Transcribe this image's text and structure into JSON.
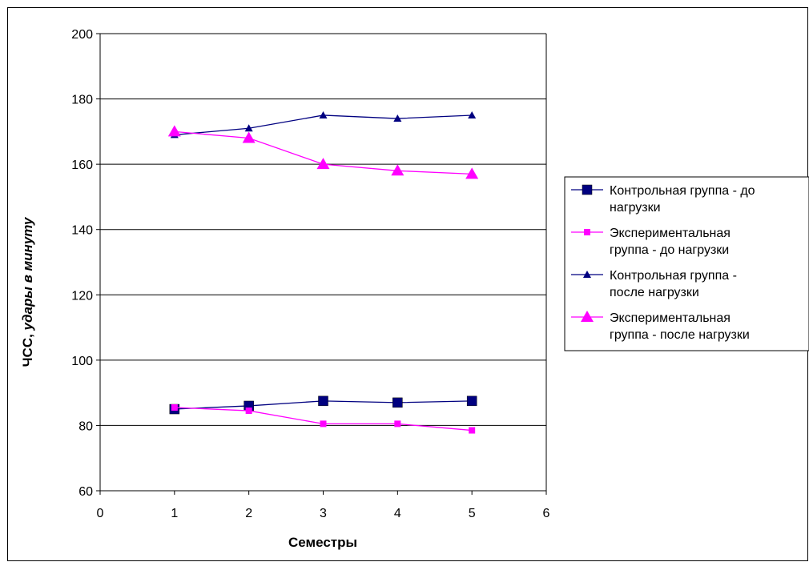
{
  "chart_data": {
    "type": "line",
    "xlabel": "Семестры",
    "ylabel_plain": "ЧСС,",
    "ylabel_italic": " удары в минуту",
    "xlim": [
      0,
      6
    ],
    "ylim": [
      60,
      200
    ],
    "xticks": [
      "0",
      "1",
      "2",
      "3",
      "4",
      "5",
      "6"
    ],
    "yticks": [
      "60",
      "80",
      "100",
      "120",
      "140",
      "160",
      "180",
      "200"
    ],
    "grid": "horizontal",
    "legend_position": "right",
    "x": [
      1,
      2,
      3,
      4,
      5
    ],
    "series": [
      {
        "name_lines": [
          "Контрольная группа - до",
          "нагрузки"
        ],
        "color": "#000080",
        "marker": "square-large",
        "values": [
          85,
          86,
          87.5,
          87,
          87.5
        ]
      },
      {
        "name_lines": [
          "Экспериментальная",
          "группа - до нагрузки"
        ],
        "color": "#ff00ff",
        "marker": "square-small",
        "values": [
          85.5,
          84.5,
          80.5,
          80.5,
          78.5
        ]
      },
      {
        "name_lines": [
          "Контрольная группа -",
          "после нагрузки"
        ],
        "color": "#000080",
        "marker": "triangle-small",
        "values": [
          169,
          171,
          175,
          174,
          175
        ]
      },
      {
        "name_lines": [
          "Экспериментальная",
          "группа - после нагрузки"
        ],
        "color": "#ff00ff",
        "marker": "triangle-large",
        "values": [
          170,
          168,
          160,
          158,
          157
        ]
      }
    ]
  }
}
